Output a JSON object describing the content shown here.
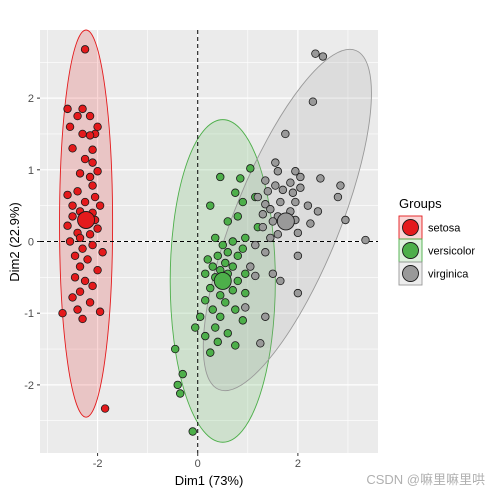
{
  "chart_data": {
    "type": "scatter",
    "xlabel": "Dim1 (73%)",
    "ylabel": "Dim2 (22.9%)",
    "xlim": [
      -3.15,
      3.6
    ],
    "ylim": [
      -2.95,
      2.95
    ],
    "x_ticks": [
      -2,
      0,
      2
    ],
    "y_ticks": [
      -2,
      -1,
      0,
      1,
      2
    ],
    "x_tick_labels": [
      "-2",
      "0",
      "2"
    ],
    "y_tick_labels": [
      "-2",
      "-1",
      "0",
      "1",
      "2"
    ],
    "grid": true,
    "reference_lines": {
      "x": 0,
      "y": 0,
      "style": "dashed"
    },
    "legend": {
      "title": "Groups",
      "placement": "right",
      "entries": [
        "setosa",
        "versicolor",
        "virginica"
      ]
    },
    "colors": {
      "setosa": "#e41a1c",
      "versicolor": "#4daf4a",
      "virginica": "#999999",
      "panel": "#ebebeb",
      "grid": "#ffffff"
    },
    "series": [
      {
        "name": "setosa",
        "centroid": [
          -2.23,
          0.3
        ],
        "ellipse": {
          "cx": -2.23,
          "cy": 0.25,
          "rx": 0.53,
          "ry": 2.7
        },
        "points": [
          [
            -2.25,
            2.68
          ],
          [
            -2.3,
            1.85
          ],
          [
            -2.6,
            1.85
          ],
          [
            -2.4,
            1.75
          ],
          [
            -2.15,
            1.75
          ],
          [
            -2.55,
            1.6
          ],
          [
            -2.0,
            1.6
          ],
          [
            -2.3,
            1.5
          ],
          [
            -2.05,
            1.5
          ],
          [
            -2.15,
            1.48
          ],
          [
            -2.5,
            1.3
          ],
          [
            -2.1,
            1.28
          ],
          [
            -2.25,
            1.15
          ],
          [
            -2.1,
            1.1
          ],
          [
            -2.0,
            0.98
          ],
          [
            -2.35,
            0.95
          ],
          [
            -2.15,
            0.9
          ],
          [
            -2.1,
            0.78
          ],
          [
            -2.4,
            0.7
          ],
          [
            -2.6,
            0.65
          ],
          [
            -2.05,
            0.62
          ],
          [
            -2.25,
            0.55
          ],
          [
            -2.5,
            0.5
          ],
          [
            -1.95,
            0.5
          ],
          [
            -2.35,
            0.42
          ],
          [
            -2.1,
            0.4
          ],
          [
            -2.3,
            0.35
          ],
          [
            -2.5,
            0.35
          ],
          [
            -2.05,
            0.3
          ],
          [
            -2.2,
            0.25
          ],
          [
            -2.6,
            0.22
          ],
          [
            -2.0,
            0.18
          ],
          [
            -2.4,
            0.12
          ],
          [
            -2.15,
            0.1
          ],
          [
            -2.35,
            0.05
          ],
          [
            -2.55,
            0.0
          ],
          [
            -2.1,
            -0.05
          ],
          [
            -2.3,
            -0.1
          ],
          [
            -1.9,
            -0.15
          ],
          [
            -2.45,
            -0.2
          ],
          [
            -2.2,
            -0.25
          ],
          [
            -2.35,
            -0.35
          ],
          [
            -2.0,
            -0.4
          ],
          [
            -2.45,
            -0.5
          ],
          [
            -2.25,
            -0.55
          ],
          [
            -2.1,
            -0.62
          ],
          [
            -2.35,
            -0.7
          ],
          [
            -2.5,
            -0.78
          ],
          [
            -2.15,
            -0.85
          ],
          [
            -2.4,
            -0.95
          ],
          [
            -1.95,
            -0.98
          ],
          [
            -2.7,
            -1.0
          ],
          [
            -2.3,
            -1.08
          ],
          [
            -1.85,
            -2.33
          ]
        ]
      },
      {
        "name": "versicolor",
        "centroid": [
          0.5,
          -0.55
        ],
        "ellipse": {
          "cx": 0.5,
          "cy": -0.55,
          "rx": 1.05,
          "ry": 2.25
        },
        "points": [
          [
            0.45,
            0.9
          ],
          [
            0.85,
            0.88
          ],
          [
            1.05,
            1.02
          ],
          [
            0.75,
            0.68
          ],
          [
            1.15,
            0.62
          ],
          [
            0.9,
            0.55
          ],
          [
            0.25,
            0.5
          ],
          [
            0.8,
            0.35
          ],
          [
            0.6,
            0.28
          ],
          [
            1.2,
            0.2
          ],
          [
            0.35,
            0.05
          ],
          [
            0.7,
            0.0
          ],
          [
            0.95,
            0.05
          ],
          [
            0.5,
            -0.05
          ],
          [
            0.9,
            -0.1
          ],
          [
            0.6,
            -0.15
          ],
          [
            0.4,
            -0.2
          ],
          [
            0.8,
            -0.2
          ],
          [
            0.2,
            -0.25
          ],
          [
            0.55,
            -0.3
          ],
          [
            0.3,
            -0.35
          ],
          [
            0.7,
            -0.35
          ],
          [
            0.45,
            -0.4
          ],
          [
            0.15,
            -0.45
          ],
          [
            0.6,
            -0.45
          ],
          [
            0.95,
            -0.45
          ],
          [
            0.35,
            -0.5
          ],
          [
            0.8,
            -0.55
          ],
          [
            0.5,
            -0.6
          ],
          [
            0.25,
            -0.65
          ],
          [
            0.7,
            -0.68
          ],
          [
            0.45,
            -0.75
          ],
          [
            0.95,
            -0.72
          ],
          [
            0.15,
            -0.82
          ],
          [
            0.55,
            -0.85
          ],
          [
            0.3,
            -0.95
          ],
          [
            0.75,
            -0.95
          ],
          [
            0.05,
            -1.05
          ],
          [
            0.45,
            -1.05
          ],
          [
            0.9,
            -1.1
          ],
          [
            -0.05,
            -1.2
          ],
          [
            0.35,
            -1.2
          ],
          [
            0.6,
            -1.28
          ],
          [
            0.15,
            -1.32
          ],
          [
            0.4,
            -1.4
          ],
          [
            0.75,
            -1.45
          ],
          [
            0.25,
            -1.55
          ],
          [
            -0.45,
            -1.5
          ],
          [
            -0.3,
            -1.85
          ],
          [
            -0.4,
            -2.0
          ],
          [
            -0.35,
            -2.12
          ],
          [
            -0.1,
            -2.65
          ]
        ]
      },
      {
        "name": "virginica",
        "centroid": [
          1.76,
          0.28
        ],
        "ellipse": {
          "cx": 1.79,
          "cy": 0.3,
          "rx": 1.05,
          "ry": 2.55,
          "angle": 22
        },
        "points": [
          [
            2.35,
            2.62
          ],
          [
            2.5,
            2.58
          ],
          [
            2.3,
            1.95
          ],
          [
            1.75,
            1.5
          ],
          [
            1.55,
            1.1
          ],
          [
            1.6,
            0.98
          ],
          [
            1.95,
            0.98
          ],
          [
            2.05,
            0.9
          ],
          [
            2.45,
            0.88
          ],
          [
            1.35,
            0.85
          ],
          [
            1.85,
            0.82
          ],
          [
            1.55,
            0.78
          ],
          [
            2.05,
            0.75
          ],
          [
            2.85,
            0.78
          ],
          [
            1.4,
            0.7
          ],
          [
            1.7,
            0.72
          ],
          [
            1.9,
            0.68
          ],
          [
            2.8,
            0.62
          ],
          [
            1.2,
            0.62
          ],
          [
            1.35,
            0.52
          ],
          [
            1.65,
            0.55
          ],
          [
            1.95,
            0.55
          ],
          [
            2.2,
            0.5
          ],
          [
            1.45,
            0.45
          ],
          [
            1.85,
            0.42
          ],
          [
            2.4,
            0.42
          ],
          [
            1.3,
            0.38
          ],
          [
            1.6,
            0.35
          ],
          [
            1.95,
            0.3
          ],
          [
            2.95,
            0.3
          ],
          [
            1.5,
            0.28
          ],
          [
            2.25,
            0.25
          ],
          [
            1.75,
            0.22
          ],
          [
            1.3,
            0.2
          ],
          [
            2.0,
            0.12
          ],
          [
            1.6,
            0.1
          ],
          [
            1.45,
            0.05
          ],
          [
            3.35,
            0.02
          ],
          [
            1.15,
            -0.05
          ],
          [
            1.35,
            -0.15
          ],
          [
            2.0,
            -0.2
          ],
          [
            1.05,
            -0.35
          ],
          [
            1.5,
            -0.45
          ],
          [
            1.15,
            -0.48
          ],
          [
            1.65,
            -0.55
          ],
          [
            2.0,
            -0.72
          ],
          [
            0.95,
            -0.92
          ],
          [
            1.35,
            -1.05
          ],
          [
            1.25,
            -1.42
          ]
        ]
      }
    ]
  },
  "watermark": "CSDN @嘛里嘛里哄"
}
